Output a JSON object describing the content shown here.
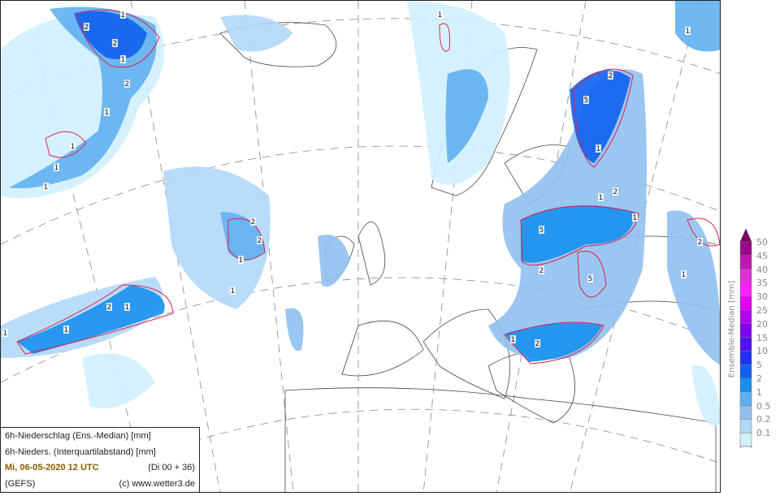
{
  "info_box": {
    "line1": "6h-Niederschlag (Ens.-Median) [mm]",
    "line2": "6h-Nieders. (Interquartilabstand) [mm]",
    "date": "Mi, 06-05-2020  12 UTC",
    "run": "(Di 00 + 36)",
    "model": "(GEFS)",
    "credit": "(c) www.wetter3.de"
  },
  "legend": {
    "title": "Ensemble-Median [mm]",
    "labels": [
      "50",
      "45",
      "40",
      "35",
      "30",
      "25",
      "20",
      "15",
      "10",
      "5",
      "2",
      "1",
      "0.5",
      "0.2",
      "0.1"
    ],
    "colors": [
      "#800060",
      "#9a0a8a",
      "#c018b0",
      "#e030d8",
      "#ff20ff",
      "#e000f0",
      "#b000f0",
      "#8000f0",
      "#5010f0",
      "#2030f0",
      "#1060f0",
      "#1890f0",
      "#60b0f0",
      "#90c0f0",
      "#b0d8f8",
      "#d0f0ff",
      "#ffffff"
    ]
  },
  "map": {
    "precip_colors": {
      "light": "#d0f0ff",
      "pale": "#b0d8f8",
      "mid": "#90c0f0",
      "blue": "#60b0f0",
      "strong": "#1890f0",
      "deep": "#1060f0"
    },
    "contour_color": "#e0204a",
    "contour_labels": [
      "2",
      "1",
      "2",
      "1",
      "2",
      "1",
      "1",
      "1",
      "1",
      "2",
      "1",
      "2",
      "1",
      "1",
      "2",
      "1",
      "1",
      "5",
      "2",
      "1",
      "1",
      "2",
      "5",
      "1",
      "2",
      "5",
      "2",
      "1",
      "1",
      "1",
      "2",
      "1"
    ]
  }
}
